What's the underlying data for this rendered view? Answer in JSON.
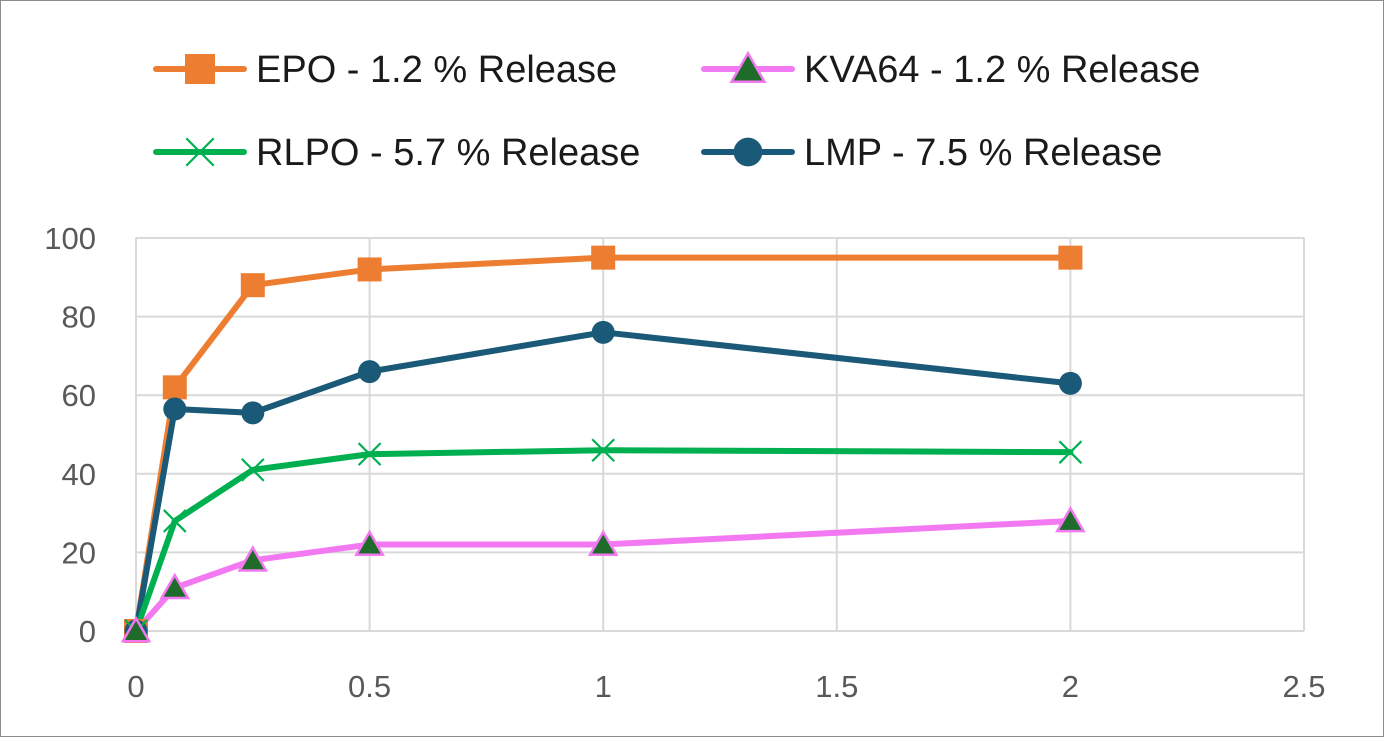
{
  "chart_data": {
    "type": "line",
    "title": "",
    "xlabel": "",
    "ylabel": "",
    "xlim": [
      0,
      2.5
    ],
    "ylim": [
      0,
      100
    ],
    "x_ticks": [
      {
        "value": 0,
        "label": "0"
      },
      {
        "value": 0.5,
        "label": "0.5"
      },
      {
        "value": 1,
        "label": "1"
      },
      {
        "value": 1.5,
        "label": "1.5"
      },
      {
        "value": 2,
        "label": "2"
      },
      {
        "value": 2.5,
        "label": "2.5"
      }
    ],
    "y_ticks": [
      {
        "value": 0,
        "label": "0"
      },
      {
        "value": 20,
        "label": "20"
      },
      {
        "value": 40,
        "label": "40"
      },
      {
        "value": 60,
        "label": "60"
      },
      {
        "value": 80,
        "label": "80"
      },
      {
        "value": 100,
        "label": "100"
      }
    ],
    "grid": true,
    "legend_position": "top",
    "series": [
      {
        "key": "epo",
        "name": "EPO - 1.2 % Release",
        "color": "#ED7D31",
        "marker": "square",
        "x": [
          0,
          0.083,
          0.25,
          0.5,
          1,
          2
        ],
        "y": [
          0,
          62,
          88,
          92,
          95,
          95
        ]
      },
      {
        "key": "kva64",
        "name": "KVA64 - 1.2 % Release",
        "color": "#F279F2",
        "marker": "triangle",
        "marker_fill": "#1E6B2A",
        "x": [
          0,
          0.083,
          0.25,
          0.5,
          1,
          2
        ],
        "y": [
          0,
          11,
          18,
          22,
          22,
          28
        ]
      },
      {
        "key": "rlpo",
        "name": "RLPO - 5.7 % Release",
        "color": "#00B050",
        "marker": "x",
        "x": [
          0,
          0.083,
          0.25,
          0.5,
          1,
          2
        ],
        "y": [
          0,
          28,
          41,
          45,
          46,
          45.5
        ]
      },
      {
        "key": "lmp",
        "name": "LMP - 7.5 % Release",
        "color": "#1A5A78",
        "marker": "circle",
        "x": [
          0,
          0.083,
          0.25,
          0.5,
          1,
          2
        ],
        "y": [
          0,
          56.5,
          55.5,
          66,
          76,
          63
        ]
      }
    ]
  },
  "colors": {
    "gridline": "#d9d9d9",
    "axis_label": "#595959",
    "frame": "#8c8c8c"
  }
}
